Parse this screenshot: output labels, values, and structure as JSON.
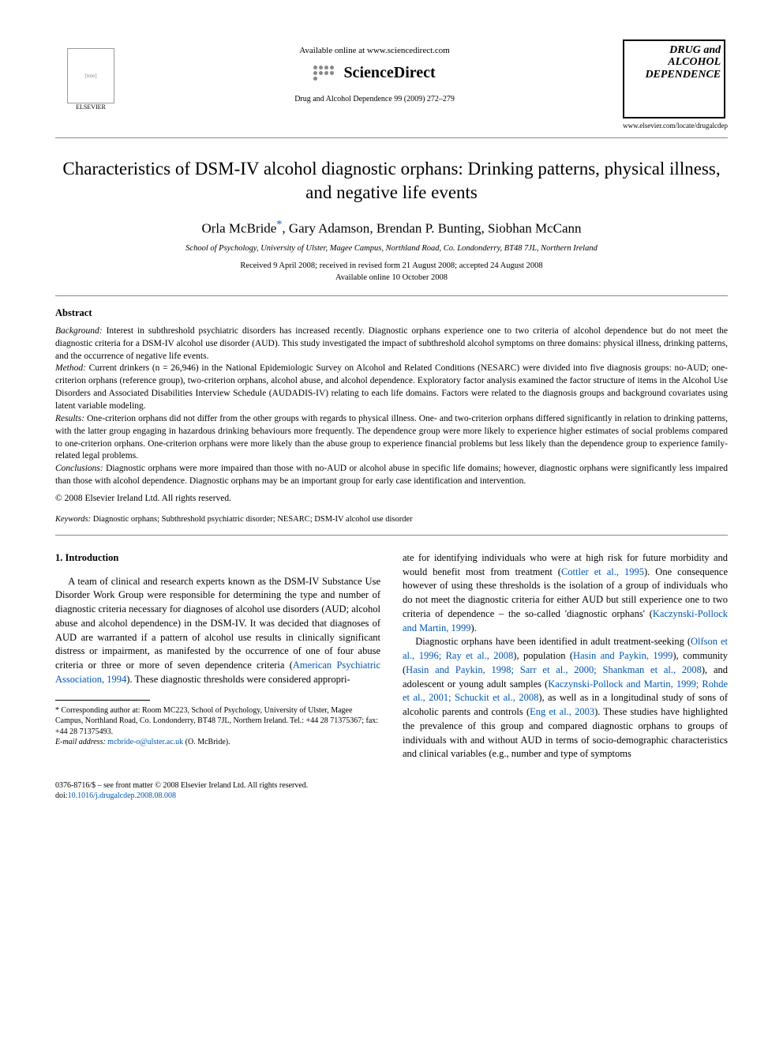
{
  "header": {
    "publisher_name": "ELSEVIER",
    "available_text": "Available online at www.sciencedirect.com",
    "sd_brand": "ScienceDirect",
    "citation_line": "Drug and Alcohol Dependence 99 (2009) 272–279",
    "journal_cover_title": "DRUG and ALCOHOL DEPENDENCE",
    "journal_url": "www.elsevier.com/locate/drugalcdep"
  },
  "article": {
    "title": "Characteristics of DSM-IV alcohol diagnostic orphans: Drinking patterns, physical illness, and negative life events",
    "authors": "Orla McBride*, Gary Adamson, Brendan P. Bunting, Siobhan McCann",
    "author_names": [
      "Orla McBride",
      "Gary Adamson",
      "Brendan P. Bunting",
      "Siobhan McCann"
    ],
    "affiliation": "School of Psychology, University of Ulster, Magee Campus, Northland Road, Co. Londonderry, BT48 7JL, Northern Ireland",
    "received": "Received 9 April 2008; received in revised form 21 August 2008; accepted 24 August 2008",
    "available_online": "Available online 10 October 2008"
  },
  "abstract": {
    "heading": "Abstract",
    "background_label": "Background:",
    "background": "Interest in subthreshold psychiatric disorders has increased recently. Diagnostic orphans experience one to two criteria of alcohol dependence but do not meet the diagnostic criteria for a DSM-IV alcohol use disorder (AUD). This study investigated the impact of subthreshold alcohol symptoms on three domains: physical illness, drinking patterns, and the occurrence of negative life events.",
    "method_label": "Method:",
    "method": "Current drinkers (n = 26,946) in the National Epidemiologic Survey on Alcohol and Related Conditions (NESARC) were divided into five diagnosis groups: no-AUD; one-criterion orphans (reference group), two-criterion orphans, alcohol abuse, and alcohol dependence. Exploratory factor analysis examined the factor structure of items in the Alcohol Use Disorders and Associated Disabilities Interview Schedule (AUDADIS-IV) relating to each life domains. Factors were related to the diagnosis groups and background covariates using latent variable modeling.",
    "results_label": "Results:",
    "results": "One-criterion orphans did not differ from the other groups with regards to physical illness. One- and two-criterion orphans differed significantly in relation to drinking patterns, with the latter group engaging in hazardous drinking behaviours more frequently. The dependence group were more likely to experience higher estimates of social problems compared to one-criterion orphans. One-criterion orphans were more likely than the abuse group to experience financial problems but less likely than the dependence group to experience family-related legal problems.",
    "conclusions_label": "Conclusions:",
    "conclusions": "Diagnostic orphans were more impaired than those with no-AUD or alcohol abuse in specific life domains; however, diagnostic orphans were significantly less impaired than those with alcohol dependence. Diagnostic orphans may be an important group for early case identification and intervention.",
    "copyright": "© 2008 Elsevier Ireland Ltd. All rights reserved."
  },
  "keywords": {
    "label": "Keywords:",
    "text": "Diagnostic orphans; Subthreshold psychiatric disorder; NESARC; DSM-IV alcohol use disorder"
  },
  "body": {
    "section_heading": "1. Introduction",
    "col1_p1_a": "A team of clinical and research experts known as the DSM-IV Substance Use Disorder Work Group were responsible for determining the type and number of diagnostic criteria necessary for diagnoses of alcohol use disorders (AUD; alcohol abuse and alcohol dependence) in the DSM-IV. It was decided that diagnoses of AUD are warranted if a pattern of alcohol use results in clinically significant distress or impairment, as manifested by the occurrence of one of four abuse criteria or three or more of seven dependence criteria (",
    "col1_link1": "American Psychiatric Association, 1994",
    "col1_p1_b": "). These diagnostic thresholds were considered appropri-",
    "col2_p1_a": "ate for identifying individuals who were at high risk for future morbidity and would benefit most from treatment (",
    "col2_link1": "Cottler et al., 1995",
    "col2_p1_b": "). One consequence however of using these thresholds is the isolation of a group of individuals who do not meet the diagnostic criteria for either AUD but still experience one to two criteria of dependence – the so-called 'diagnostic orphans' (",
    "col2_link2": "Kaczynski-Pollock and Martin, 1999",
    "col2_p1_c": ").",
    "col2_p2_a": "Diagnostic orphans have been identified in adult treatment-seeking (",
    "col2_link3": "Olfson et al., 1996; Ray et al., 2008",
    "col2_p2_b": "), population (",
    "col2_link4": "Hasin and Paykin, 1999",
    "col2_p2_c": "), community (",
    "col2_link5": "Hasin and Paykin, 1998; Sarr et al., 2000; Shankman et al., 2008",
    "col2_p2_d": "), and adolescent or young adult samples (",
    "col2_link6": "Kaczynski-Pollock and Martin, 1999; Rohde et al., 2001; Schuckit et al., 2008",
    "col2_p2_e": "), as well as in a longitudinal study of sons of alcoholic parents and controls (",
    "col2_link7": "Eng et al., 2003",
    "col2_p2_f": "). These studies have highlighted the prevalence of this group and compared diagnostic orphans to groups of individuals with and without AUD in terms of socio-demographic characteristics and clinical variables (e.g., number and type of symptoms"
  },
  "footnote": {
    "corr_label": "* Corresponding author at:",
    "corr_text": " Room MC223, School of Psychology, University of Ulster, Magee Campus, Northland Road, Co. Londonderry, BT48 7JL, Northern Ireland. Tel.: +44 28 71375367; fax: +44 28 71375493.",
    "email_label": "E-mail address:",
    "email": "mcbride-o@ulster.ac.uk",
    "email_suffix": " (O. McBride)."
  },
  "footer": {
    "line1": "0376-8716/$ – see front matter © 2008 Elsevier Ireland Ltd. All rights reserved.",
    "doi_label": "doi:",
    "doi": "10.1016/j.drugalcdep.2008.08.008"
  },
  "colors": {
    "link": "#0056b3",
    "text": "#000000",
    "rule": "#888888",
    "background": "#ffffff"
  },
  "typography": {
    "body_family": "Times New Roman",
    "title_size_pt": 18,
    "author_size_pt": 13,
    "abstract_size_pt": 9,
    "body_size_pt": 10
  }
}
